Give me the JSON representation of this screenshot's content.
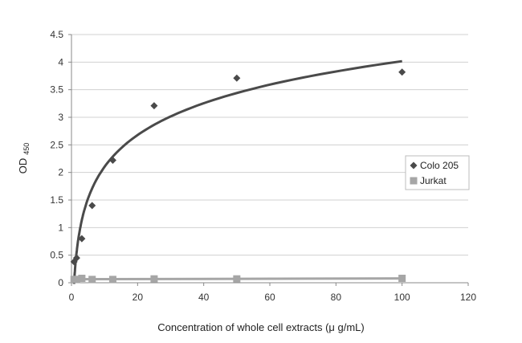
{
  "chart_data": {
    "type": "scatter",
    "title": "",
    "xlabel": "Concentration of whole cell extracts (μ g/mL)",
    "ylabel": "OD",
    "ylabel_subscript": "450",
    "xlim": [
      0,
      120
    ],
    "ylim": [
      0,
      4.5
    ],
    "x_ticks": [
      "0",
      "20",
      "40",
      "60",
      "80",
      "100",
      "120"
    ],
    "y_ticks": [
      "0",
      "0.5",
      "1",
      "1.5",
      "2",
      "2.5",
      "3",
      "3.5",
      "4",
      "4.5"
    ],
    "grid": "horizontal",
    "legend_position": "right",
    "series": [
      {
        "name": "Colo 205",
        "marker": "diamond",
        "color": "#4a4a4a",
        "x": [
          0.78,
          1.56,
          3.13,
          6.25,
          12.5,
          25,
          50,
          100
        ],
        "y": [
          0.38,
          0.45,
          0.8,
          1.4,
          2.22,
          3.21,
          3.71,
          3.82
        ],
        "trendline": "log",
        "trendline_color": "#4a4a4a"
      },
      {
        "name": "Jurkat",
        "marker": "square",
        "color": "#a6a6a6",
        "x": [
          0.78,
          1.56,
          3.13,
          6.25,
          12.5,
          25,
          50,
          100
        ],
        "y": [
          0.06,
          0.06,
          0.08,
          0.06,
          0.06,
          0.07,
          0.07,
          0.08
        ],
        "trendline": "linear",
        "trendline_color": "#a6a6a6"
      }
    ]
  }
}
